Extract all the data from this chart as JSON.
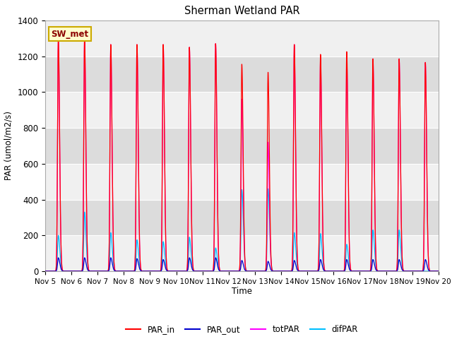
{
  "title": "Sherman Wetland PAR",
  "ylabel": "PAR (umol/m2/s)",
  "xlabel": "Time",
  "ylim": [
    0,
    1400
  ],
  "xtick_labels": [
    "Nov 5",
    "Nov 6",
    "Nov 7",
    "Nov 8",
    "Nov 9",
    "Nov 10",
    "Nov 11",
    "Nov 12",
    "Nov 13",
    "Nov 14",
    "Nov 15",
    "Nov 16",
    "Nov 17",
    "Nov 18",
    "Nov 19",
    "Nov 20"
  ],
  "legend_label": "SW_met",
  "colors": {
    "PAR_in": "#ff0000",
    "PAR_out": "#0000cd",
    "totPAR": "#ff00ff",
    "difPAR": "#00bfff"
  },
  "bg_color_dark": "#dcdcdc",
  "bg_color_light": "#f0f0f0",
  "par_in_peaks": [
    1300,
    1300,
    1265,
    1265,
    1265,
    1250,
    1270,
    1155,
    1110,
    1265,
    1210,
    1225,
    1185,
    1185,
    1165
  ],
  "tot_par_peaks": [
    1300,
    1300,
    1265,
    1265,
    1265,
    1250,
    1270,
    960,
    720,
    1265,
    1185,
    1185,
    1185,
    1185,
    1165
  ],
  "dif_par_peaks": [
    200,
    330,
    215,
    175,
    165,
    190,
    130,
    455,
    460,
    215,
    210,
    150,
    230,
    230,
    0
  ],
  "par_out_peaks": [
    75,
    75,
    75,
    70,
    65,
    75,
    75,
    60,
    55,
    60,
    65,
    65,
    65,
    65,
    65
  ],
  "n_days": 15,
  "yticks": [
    0,
    200,
    400,
    600,
    800,
    1000,
    1200,
    1400
  ]
}
